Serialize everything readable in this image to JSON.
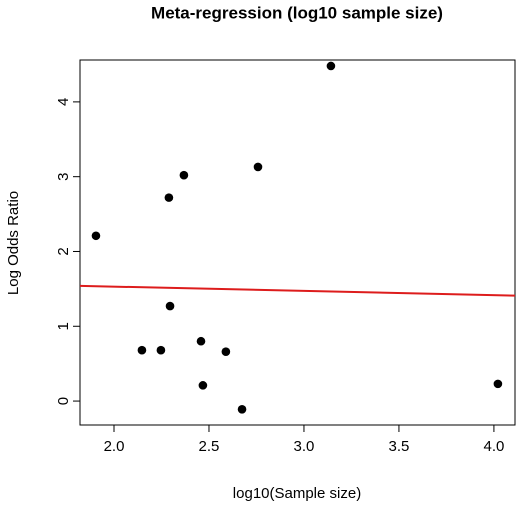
{
  "chart_data": {
    "type": "scatter",
    "title": "Meta-regression (log10 sample size)",
    "x_label": "log10(Sample size)",
    "y_label": "Log Odds Ratio",
    "x": [
      1.905,
      2.147,
      2.247,
      2.289,
      2.295,
      2.368,
      2.458,
      2.468,
      2.589,
      2.674,
      2.758,
      3.142,
      4.021
    ],
    "values": [
      2.21,
      0.68,
      0.68,
      2.72,
      1.27,
      3.02,
      0.8,
      0.21,
      0.66,
      -0.11,
      3.13,
      4.48,
      0.23
    ],
    "color": "#000000",
    "regression_line": {
      "x": [
        1.821,
        4.111
      ],
      "values": [
        1.54,
        1.41
      ],
      "color": "#dd1c1c"
    },
    "xlim": [
      1.821,
      4.111
    ],
    "ylim": [
      -0.32,
      4.56
    ],
    "xticks": [
      {
        "value": 2,
        "label": "2.0"
      },
      2.5,
      {
        "value": 3,
        "label": "3.0"
      },
      3.5,
      {
        "value": 4,
        "label": "4.0"
      }
    ],
    "yticks": [
      0,
      1,
      2,
      3,
      4
    ],
    "grid": false
  }
}
